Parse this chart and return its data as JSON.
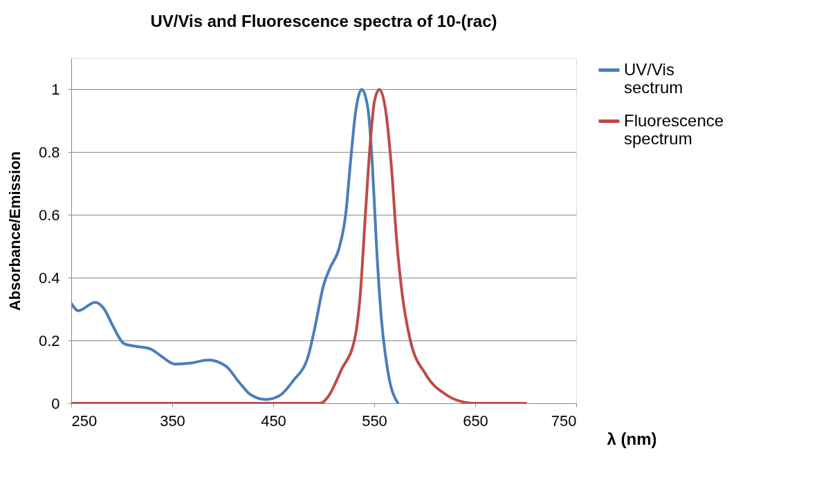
{
  "chart_data": {
    "type": "line",
    "title": "UV/Vis and Fluorescence spectra of 10-(rac)",
    "xlabel": "λ (nm)",
    "ylabel": "Absorbance/Emission",
    "xlim": [
      250,
      750
    ],
    "xticks": [
      250,
      350,
      450,
      550,
      650,
      750
    ],
    "ylim": [
      0,
      1.1
    ],
    "yticks": [
      0,
      0.2,
      0.4,
      0.6,
      0.8,
      1
    ],
    "grid": "y",
    "legend": "right",
    "marker": "none",
    "line_style": "solid",
    "series": [
      {
        "name": "UV/Vis sectrum",
        "color": "#4a7ebb",
        "x": [
          250,
          257,
          273.7,
          282.5,
          291.3,
          302.3,
          313,
          328.6,
          339.6,
          352.8,
          368.2,
          385.7,
          403.3,
          416.5,
          427.4,
          442.8,
          456,
          470,
          484.5,
          491.1,
          499.9,
          506.5,
          515.3,
          521.9,
          526.2,
          531.7,
          537.7,
          543.8,
          548.2,
          552.6,
          557,
          563.6,
          573.5
        ],
        "values": [
          0.318,
          0.295,
          0.322,
          0.301,
          0.246,
          0.19,
          0.182,
          0.173,
          0.149,
          0.125,
          0.128,
          0.138,
          0.118,
          0.066,
          0.028,
          0.012,
          0.024,
          0.073,
          0.149,
          0.239,
          0.377,
          0.433,
          0.495,
          0.606,
          0.758,
          0.931,
          1.0,
          0.938,
          0.758,
          0.481,
          0.273,
          0.1,
          0
        ]
      },
      {
        "name": "Fluorescence spectrum",
        "color": "#be4b48",
        "x": [
          250,
          350,
          450,
          496.6,
          504.3,
          517.5,
          530.6,
          536.1,
          541.6,
          546,
          550.4,
          555.2,
          561.4,
          566.9,
          572.3,
          577.9,
          585.5,
          600.9,
          622.9,
          640,
          650,
          700
        ],
        "values": [
          0,
          0,
          0,
          0,
          0.021,
          0.107,
          0.204,
          0.343,
          0.619,
          0.827,
          0.965,
          1.0,
          0.931,
          0.758,
          0.516,
          0.343,
          0.204,
          0.093,
          0.024,
          0.003,
          0,
          0
        ]
      }
    ]
  }
}
